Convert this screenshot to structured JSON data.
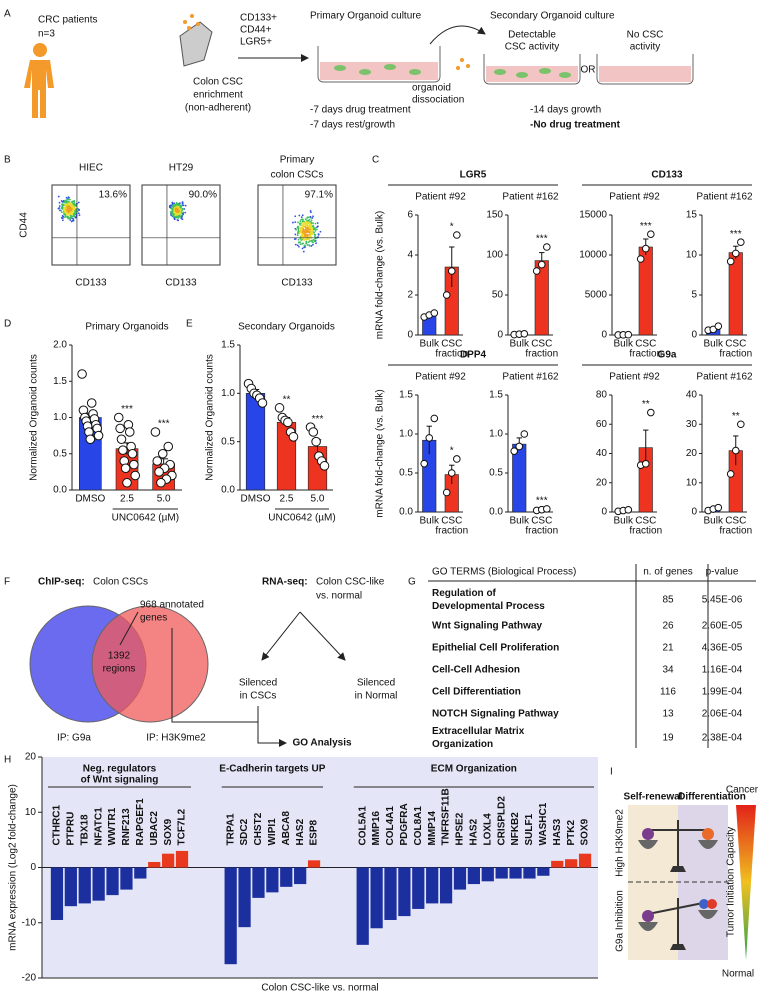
{
  "panel_labels": [
    "A",
    "B",
    "C",
    "D",
    "E",
    "F",
    "G",
    "H",
    "I"
  ],
  "workflow": {
    "patients": [
      "CRC patients",
      "n=3"
    ],
    "enrichment": [
      "Colon CSC",
      "enrichment",
      "(non-adherent)"
    ],
    "markers": [
      "CD133+",
      "CD44+",
      "LGR5+"
    ],
    "primary_title": "Primary Organoid culture",
    "dissociation": [
      "organoid",
      "dissociation"
    ],
    "primary_steps": [
      "-7 days drug treatment",
      "-7 days rest/growth"
    ],
    "secondary_title": "Secondary Organoid culture",
    "detectable": [
      "Detectable",
      "CSC activity"
    ],
    "or": "OR",
    "no_activity": [
      "No CSC",
      "activity"
    ],
    "secondary_steps": [
      "-14 days growth",
      "-No drug treatment"
    ]
  },
  "flow_cytometry": {
    "y_label": "CD44",
    "plots": [
      {
        "title": [
          "HIEC"
        ],
        "percent": "13.6%",
        "x_label": "CD133"
      },
      {
        "title": [
          "HT29"
        ],
        "percent": "90.0%",
        "x_label": "CD133"
      },
      {
        "title": [
          "Primary",
          "colon CSCs"
        ],
        "percent": "97.1%",
        "x_label": "CD133"
      }
    ]
  },
  "chart_data": [
    {
      "type": "bar",
      "group_title": "LGR5",
      "title": "Patient #92",
      "ylabel": "mRNA fold-change (vs. Bulk)",
      "categories": [
        [
          "Bulk"
        ],
        [
          "CSC",
          "fraction"
        ]
      ],
      "values": [
        1.0,
        3.4
      ],
      "errors": [
        0.1,
        1.0
      ],
      "points": [
        [
          0.9,
          1.0,
          1.1
        ],
        [
          2.0,
          3.2,
          5.0
        ]
      ],
      "significance": [
        null,
        "*"
      ],
      "colors": [
        "#2846e8",
        "#ee3420"
      ],
      "ylim": [
        0,
        6
      ],
      "yticks": [
        0,
        2,
        4,
        6
      ]
    },
    {
      "type": "bar",
      "title": "Patient #162",
      "categories": [
        [
          "Bulk"
        ],
        [
          "CSC",
          "fraction"
        ]
      ],
      "values": [
        1,
        93
      ],
      "errors": [
        0.2,
        10
      ],
      "points": [
        [
          0.5,
          1,
          1.5
        ],
        [
          80,
          88,
          110
        ]
      ],
      "significance": [
        null,
        "***"
      ],
      "colors": [
        "#2846e8",
        "#ee3420"
      ],
      "ylim": [
        0,
        150
      ],
      "yticks": [
        0,
        50,
        100,
        150
      ]
    },
    {
      "type": "bar",
      "group_title": "CD133",
      "title": "Patient #92",
      "categories": [
        [
          "Bulk"
        ],
        [
          "CSC",
          "fraction"
        ]
      ],
      "values": [
        20,
        11000
      ],
      "errors": [
        10,
        1000
      ],
      "points": [
        [
          5,
          20,
          35
        ],
        [
          9500,
          10800,
          12600
        ]
      ],
      "significance": [
        null,
        "***"
      ],
      "colors": [
        "#2846e8",
        "#ee3420"
      ],
      "ylim": [
        0,
        15000
      ],
      "yticks": [
        0,
        5000,
        10000,
        15000
      ]
    },
    {
      "type": "bar",
      "title": "Patient #162",
      "categories": [
        [
          "Bulk"
        ],
        [
          "CSC",
          "fraction"
        ]
      ],
      "values": [
        0.8,
        10.3
      ],
      "errors": [
        0.2,
        0.8
      ],
      "points": [
        [
          0.6,
          0.7,
          1.1
        ],
        [
          9.2,
          10.2,
          11.6
        ]
      ],
      "significance": [
        null,
        "***"
      ],
      "colors": [
        "#2846e8",
        "#ee3420"
      ],
      "ylim": [
        0,
        15
      ],
      "yticks": [
        0,
        5,
        10,
        15
      ]
    },
    {
      "type": "bar",
      "group_title": "DPP4",
      "title": "Patient #92",
      "ylabel": "mRNA fold-change (vs. Bulk)",
      "categories": [
        [
          "Bulk"
        ],
        [
          "CSC",
          "fraction"
        ]
      ],
      "values": [
        0.92,
        0.48
      ],
      "errors": [
        0.18,
        0.12
      ],
      "points": [
        [
          0.62,
          0.95,
          1.2
        ],
        [
          0.25,
          0.5,
          0.68
        ]
      ],
      "significance": [
        null,
        "*"
      ],
      "colors": [
        "#2846e8",
        "#ee3420"
      ],
      "ylim": [
        0,
        1.5
      ],
      "yticks": [
        {
          "value": 0,
          "label": "0.0"
        },
        0.5,
        {
          "value": 1,
          "label": "1.0"
        },
        1.5
      ]
    },
    {
      "type": "bar",
      "title": "Patient #162",
      "categories": [
        [
          "Bulk"
        ],
        [
          "CSC",
          "fraction"
        ]
      ],
      "values": [
        0.87,
        0.03
      ],
      "errors": [
        0.08,
        0.01
      ],
      "points": [
        [
          0.78,
          0.84,
          1.0
        ],
        [
          0.02,
          0.03,
          0.04
        ]
      ],
      "significance": [
        null,
        "***"
      ],
      "colors": [
        "#2846e8",
        "#ee3420"
      ],
      "ylim": [
        0,
        1.5
      ],
      "yticks": [
        {
          "value": 0,
          "label": "0.0"
        },
        0.5,
        {
          "value": 1,
          "label": "1.0"
        },
        1.5
      ]
    },
    {
      "type": "bar",
      "group_title": "G9a",
      "title": "Patient #92",
      "categories": [
        [
          "Bulk"
        ],
        [
          "CSC",
          "fraction"
        ]
      ],
      "values": [
        1,
        44
      ],
      "errors": [
        0.3,
        12
      ],
      "points": [
        [
          0.5,
          1,
          1.5
        ],
        [
          32,
          33,
          68
        ]
      ],
      "significance": [
        null,
        "**"
      ],
      "colors": [
        "#2846e8",
        "#ee3420"
      ],
      "ylim": [
        0,
        80
      ],
      "yticks": [
        0,
        20,
        40,
        60,
        80
      ]
    },
    {
      "type": "bar",
      "title": "Patient #162",
      "categories": [
        [
          "Bulk"
        ],
        [
          "CSC",
          "fraction"
        ]
      ],
      "values": [
        1,
        21
      ],
      "errors": [
        0.3,
        5
      ],
      "points": [
        [
          0.5,
          1,
          1.5
        ],
        [
          13,
          21,
          30
        ]
      ],
      "significance": [
        null,
        "**"
      ],
      "colors": [
        "#2846e8",
        "#ee3420"
      ],
      "ylim": [
        0,
        40
      ],
      "yticks": [
        0,
        10,
        20,
        30,
        40
      ]
    },
    {
      "type": "bar",
      "title": "Primary Organoids",
      "ylabel": "Normalized Organoid counts",
      "xlabel": "UNC0642 (µM)",
      "categories": [
        [
          "DMSO"
        ],
        [
          "2.5"
        ],
        [
          "5.0"
        ]
      ],
      "values": [
        1.0,
        0.57,
        0.36
      ],
      "errors": [
        0.06,
        0.08,
        0.07
      ],
      "points": [
        [
          1.6,
          1.2,
          1.1,
          1.05,
          1.0,
          0.98,
          0.95,
          0.9,
          0.88,
          0.85,
          0.8,
          0.75,
          0.7
        ],
        [
          1.0,
          0.9,
          0.85,
          0.8,
          0.7,
          0.6,
          0.55,
          0.5,
          0.4,
          0.35,
          0.3,
          0.2,
          0.1
        ],
        [
          0.8,
          0.6,
          0.5,
          0.4,
          0.35,
          0.3,
          0.25,
          0.2,
          0.15,
          0.1
        ]
      ],
      "significance": [
        null,
        "***",
        "***"
      ],
      "colors": [
        "#2846e8",
        "#ee3420",
        "#ee3420"
      ],
      "ylim": [
        0,
        2
      ],
      "yticks": [
        {
          "value": 0,
          "label": "0.0"
        },
        0.5,
        {
          "value": 1,
          "label": "1.0"
        },
        1.5,
        {
          "value": 2,
          "label": "2.0"
        }
      ]
    },
    {
      "type": "bar",
      "title": "Secondary Organoids",
      "ylabel": "Normalized Organoid counts",
      "xlabel": "UNC0642 (µM)",
      "categories": [
        [
          "DMSO"
        ],
        [
          "2.5"
        ],
        [
          "5.0"
        ]
      ],
      "values": [
        1.0,
        0.7,
        0.45
      ],
      "errors": [
        0.04,
        0.05,
        0.07
      ],
      "points": [
        [
          1.1,
          1.05,
          1.0,
          0.98,
          0.95,
          0.9
        ],
        [
          0.85,
          0.75,
          0.72,
          0.7,
          0.6,
          0.55
        ],
        [
          0.65,
          0.6,
          0.5,
          0.35,
          0.3,
          0.25
        ]
      ],
      "significance": [
        null,
        "**",
        "***"
      ],
      "colors": [
        "#2846e8",
        "#ee3420",
        "#ee3420"
      ],
      "ylim": [
        0,
        1.5
      ],
      "yticks": [
        {
          "value": 0,
          "label": "0.0"
        },
        0.5,
        {
          "value": 1,
          "label": "1.0"
        },
        1.5
      ]
    },
    {
      "type": "bar",
      "ylabel": "mRNA expression (Log2 fold-change)",
      "xlabel": "Colon CSC-like vs. normal",
      "color_negative": "#1c2f9e",
      "color_positive": "#e8381e",
      "background": "#e4e6f7",
      "ylim": [
        -20,
        20
      ],
      "yticks": [
        -20,
        -10,
        0,
        10,
        20
      ],
      "groups": [
        {
          "label": [
            "Neg. regulators",
            "of Wnt signaling"
          ],
          "categories": [
            "CTHRC1",
            "PTPRU",
            "TBX18",
            "NFATC1",
            "WWTR1",
            "RNF213",
            "RAPGEF1",
            "UBAC2",
            "SOX9",
            "TCF7L2"
          ],
          "values": [
            -9.5,
            -7,
            -6.5,
            -6,
            -5,
            -4,
            -2,
            1,
            2.5,
            3
          ]
        },
        {
          "label": [
            "E-Cadherin targets UP"
          ],
          "categories": [
            "TRPA1",
            "SDC2",
            "CHST2",
            "WIPI1",
            "ABCA8",
            "HAS2",
            "ESP8"
          ],
          "values": [
            -17.5,
            -10.8,
            -5.5,
            -4.5,
            -3.5,
            -3,
            1.3
          ]
        },
        {
          "label": [
            "ECM Organization"
          ],
          "categories": [
            "COL5A1",
            "MMP16",
            "COL4A1",
            "PDGFRA",
            "COL8A1",
            "MMP14",
            "TNFRSF11B",
            "HPSE2",
            "HAS2",
            "LOXL4",
            "CRISPLD2",
            "NFKB2",
            "SULF1",
            "WASHC1",
            "HAS3",
            "PTK2",
            "SOX9"
          ],
          "values": [
            -14,
            -11,
            -9.5,
            -8.8,
            -7.5,
            -6.5,
            -6.5,
            -4,
            -3,
            -2.5,
            -2,
            -2,
            -2,
            -1.5,
            1.2,
            1.5,
            2.5
          ]
        }
      ]
    }
  ],
  "chip_seq": {
    "method": "ChIP-seq:",
    "sample": "Colon CSCs",
    "annotated": [
      "968 annotated",
      "genes"
    ],
    "overlap": [
      "1392",
      "regions"
    ],
    "left": "IP: G9a",
    "right": "IP: H3K9me2"
  },
  "rna_seq": {
    "method": "RNA-seq:",
    "comparison": [
      "Colon CSC-like",
      "vs. normal"
    ],
    "silenced_csc": [
      "Silenced",
      "in CSCs"
    ],
    "silenced_normal": [
      "Silenced",
      "in Normal"
    ],
    "go": "GO Analysis"
  },
  "go_table": {
    "header": [
      "GO TERMS (Biological Process)",
      "n. of genes",
      "p-value"
    ],
    "rows": [
      [
        [
          "Regulation of",
          "Developmental Process"
        ],
        85,
        "5.45E-06"
      ],
      [
        [
          "Wnt Signaling Pathway"
        ],
        26,
        "2.60E-05"
      ],
      [
        [
          "Epithelial Cell Proliferation"
        ],
        21,
        "4.36E-05"
      ],
      [
        [
          "Cell-Cell Adhesion"
        ],
        34,
        "1.16E-04"
      ],
      [
        [
          "Cell Differentiation"
        ],
        116,
        "1.99E-04"
      ],
      [
        [
          "NOTCH Signaling Pathway"
        ],
        13,
        "2.06E-04"
      ],
      [
        [
          "Extracellular Matrix",
          "Organization"
        ],
        19,
        "2.38E-04"
      ]
    ]
  },
  "model": {
    "left": "Self-renewal",
    "right": "Differentiation",
    "top_state": "High H3K9me2",
    "bottom_state": "G9a Inhibition",
    "gradient_top": "Cancer",
    "gradient_bottom": "Normal",
    "gradient_label": "Tumor Initiation Capacity"
  }
}
